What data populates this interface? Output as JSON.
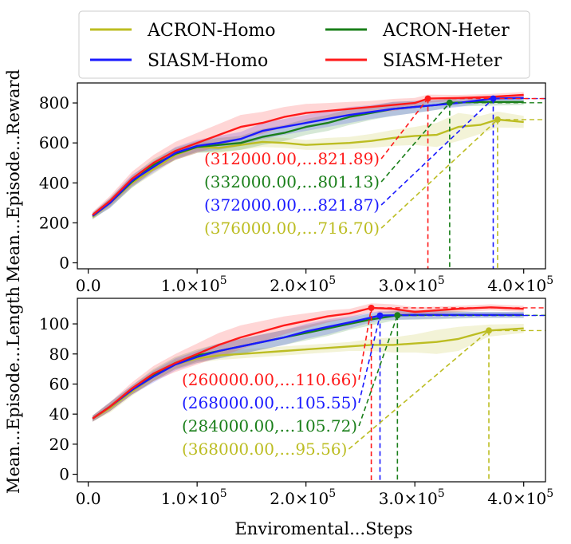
{
  "legend": {
    "placement": "top-center",
    "entries": [
      {
        "label": "ACRON-Homo",
        "color": "#bcbd22"
      },
      {
        "label": "ACRON-Heter",
        "color": "#1a7f1a"
      },
      {
        "label": "SIASM-Homo",
        "color": "#1a1aff"
      },
      {
        "label": "SIASM-Heter",
        "color": "#ff1a1a"
      }
    ]
  },
  "shared_xlabel": "Enviromental...Steps",
  "chart_data": [
    {
      "type": "line",
      "ylabel": "Mean...Episode...Reward",
      "xlim": [
        -10000,
        420000
      ],
      "ylim": [
        -30,
        900
      ],
      "xticks": [
        0,
        100000,
        200000,
        300000,
        400000
      ],
      "xtick_labels": [
        {
          "mant": "0.0",
          "exp": ""
        },
        {
          "mant": "1.0×10",
          "exp": "5"
        },
        {
          "mant": "2.0×10",
          "exp": "5"
        },
        {
          "mant": "3.0×10",
          "exp": "5"
        },
        {
          "mant": "4.0×10",
          "exp": "5"
        }
      ],
      "yticks": [
        0,
        200,
        400,
        600,
        800
      ],
      "ytick_labels": [
        "0",
        "200",
        "400",
        "600",
        "800"
      ],
      "grid": false,
      "series": [
        {
          "name": "ACRON-Homo",
          "color": "#bcbd22",
          "x": [
            4000,
            20000,
            40000,
            60000,
            80000,
            100000,
            120000,
            140000,
            160000,
            180000,
            200000,
            220000,
            240000,
            260000,
            280000,
            300000,
            320000,
            340000,
            360000,
            376000,
            400000
          ],
          "y": [
            230,
            300,
            400,
            470,
            540,
            580,
            575,
            590,
            605,
            600,
            590,
            595,
            600,
            610,
            625,
            635,
            640,
            680,
            690,
            716.7,
            705
          ],
          "band": [
            15,
            20,
            25,
            25,
            25,
            25,
            25,
            25,
            25,
            25,
            25,
            30,
            30,
            35,
            40,
            45,
            60,
            70,
            45,
            40,
            30
          ],
          "marker": {
            "x": 376000,
            "y": 716.7
          },
          "annotation": "(376000.00,…716.70)"
        },
        {
          "name": "ACRON-Heter",
          "color": "#1a7f1a",
          "x": [
            4000,
            20000,
            40000,
            60000,
            80000,
            100000,
            120000,
            140000,
            160000,
            180000,
            200000,
            220000,
            240000,
            260000,
            280000,
            300000,
            320000,
            332000,
            360000,
            400000
          ],
          "y": [
            235,
            300,
            405,
            490,
            545,
            580,
            590,
            600,
            630,
            650,
            680,
            700,
            730,
            750,
            770,
            780,
            790,
            801.13,
            805,
            805
          ],
          "band": [
            15,
            25,
            30,
            30,
            30,
            30,
            35,
            35,
            40,
            40,
            40,
            40,
            40,
            35,
            35,
            30,
            25,
            20,
            20,
            15
          ],
          "marker": {
            "x": 332000,
            "y": 801.13
          },
          "annotation": "(332000.00,…801.13)"
        },
        {
          "name": "SIASM-Homo",
          "color": "#1a1aff",
          "x": [
            4000,
            20000,
            40000,
            60000,
            80000,
            100000,
            120000,
            140000,
            160000,
            180000,
            200000,
            220000,
            240000,
            260000,
            280000,
            300000,
            320000,
            340000,
            372000,
            400000
          ],
          "y": [
            235,
            300,
            410,
            480,
            550,
            585,
            600,
            620,
            660,
            680,
            700,
            720,
            740,
            755,
            770,
            780,
            790,
            800,
            821.87,
            825
          ],
          "band": [
            15,
            25,
            30,
            30,
            30,
            30,
            35,
            35,
            40,
            40,
            40,
            40,
            40,
            35,
            35,
            30,
            25,
            20,
            15,
            15
          ],
          "marker": {
            "x": 372000,
            "y": 821.87
          },
          "annotation": "(372000.00,…821.87)"
        },
        {
          "name": "SIASM-Heter",
          "color": "#ff1a1a",
          "x": [
            4000,
            20000,
            40000,
            60000,
            80000,
            100000,
            120000,
            140000,
            160000,
            180000,
            200000,
            220000,
            240000,
            260000,
            280000,
            300000,
            312000,
            340000,
            370000,
            400000
          ],
          "y": [
            240,
            310,
            420,
            500,
            560,
            600,
            640,
            680,
            700,
            730,
            750,
            760,
            770,
            780,
            790,
            800,
            821.89,
            825,
            830,
            840
          ],
          "band": [
            15,
            25,
            35,
            40,
            45,
            50,
            55,
            60,
            55,
            50,
            45,
            40,
            35,
            30,
            30,
            25,
            20,
            15,
            15,
            15
          ],
          "marker": {
            "x": 312000,
            "y": 821.89
          },
          "annotation": "(312000.00,…821.89)"
        }
      ]
    },
    {
      "type": "line",
      "ylabel": "Mean...Episode...Length",
      "xlim": [
        -10000,
        420000
      ],
      "ylim": [
        -5,
        117
      ],
      "xticks": [
        0,
        100000,
        200000,
        300000,
        400000
      ],
      "xtick_labels": [
        {
          "mant": "0.0",
          "exp": ""
        },
        {
          "mant": "1.0×10",
          "exp": "5"
        },
        {
          "mant": "2.0×10",
          "exp": "5"
        },
        {
          "mant": "3.0×10",
          "exp": "5"
        },
        {
          "mant": "4.0×10",
          "exp": "5"
        }
      ],
      "yticks": [
        0,
        20,
        40,
        60,
        80,
        100
      ],
      "ytick_labels": [
        "0",
        "20",
        "40",
        "60",
        "80",
        "100"
      ],
      "grid": false,
      "series": [
        {
          "name": "ACRON-Homo",
          "color": "#bcbd22",
          "x": [
            4000,
            20000,
            40000,
            60000,
            80000,
            100000,
            120000,
            140000,
            160000,
            180000,
            200000,
            220000,
            240000,
            260000,
            280000,
            300000,
            320000,
            340000,
            368000,
            400000
          ],
          "y": [
            37,
            44,
            55,
            65,
            73,
            77,
            79,
            80,
            81,
            82,
            83,
            84,
            85,
            86,
            86,
            87,
            88,
            90,
            95.56,
            97
          ],
          "band": [
            2,
            3,
            3,
            3,
            3,
            3,
            3,
            3,
            3,
            3,
            3,
            3,
            3,
            4,
            5,
            6,
            8,
            8,
            4,
            3
          ],
          "marker": {
            "x": 368000,
            "y": 95.56
          },
          "annotation": "(368000.00,…95.56)"
        },
        {
          "name": "ACRON-Heter",
          "color": "#1a7f1a",
          "x": [
            4000,
            20000,
            40000,
            60000,
            80000,
            100000,
            120000,
            140000,
            160000,
            180000,
            200000,
            220000,
            240000,
            260000,
            284000,
            320000,
            360000,
            400000
          ],
          "y": [
            37,
            45,
            56,
            66,
            74,
            79,
            82,
            85,
            88,
            91,
            94,
            97,
            100,
            103,
            105.72,
            106,
            106,
            106
          ],
          "band": [
            2,
            3,
            3,
            4,
            4,
            4,
            5,
            5,
            5,
            5,
            5,
            5,
            4,
            4,
            3,
            3,
            2,
            2
          ],
          "marker": {
            "x": 284000,
            "y": 105.72
          },
          "annotation": "(284000.00,…105.72)"
        },
        {
          "name": "SIASM-Homo",
          "color": "#1a1aff",
          "x": [
            4000,
            20000,
            40000,
            60000,
            80000,
            100000,
            120000,
            140000,
            160000,
            180000,
            200000,
            220000,
            240000,
            268000,
            300000,
            340000,
            400000
          ],
          "y": [
            37,
            45,
            56,
            65,
            73,
            78,
            82,
            85,
            88,
            91,
            95,
            98,
            101,
            105.55,
            106,
            106,
            106
          ],
          "band": [
            2,
            3,
            3,
            4,
            4,
            4,
            5,
            5,
            5,
            5,
            5,
            5,
            4,
            3,
            3,
            2,
            2
          ],
          "marker": {
            "x": 268000,
            "y": 105.55
          },
          "annotation": "(268000.00,…105.55)"
        },
        {
          "name": "SIASM-Heter",
          "color": "#ff1a1a",
          "x": [
            4000,
            20000,
            40000,
            60000,
            80000,
            100000,
            120000,
            140000,
            160000,
            180000,
            200000,
            220000,
            240000,
            260000,
            280000,
            300000,
            340000,
            370000,
            400000
          ],
          "y": [
            37,
            45,
            57,
            67,
            74,
            80,
            86,
            91,
            95,
            99,
            102,
            105,
            107,
            110.66,
            110,
            108,
            110,
            111,
            110
          ],
          "band": [
            2,
            3,
            4,
            5,
            6,
            7,
            8,
            8,
            7,
            6,
            5,
            4,
            3,
            3,
            3,
            3,
            2,
            2,
            2
          ],
          "marker": {
            "x": 260000,
            "y": 110.66
          },
          "annotation": "(260000.00,…110.66)"
        }
      ]
    }
  ]
}
